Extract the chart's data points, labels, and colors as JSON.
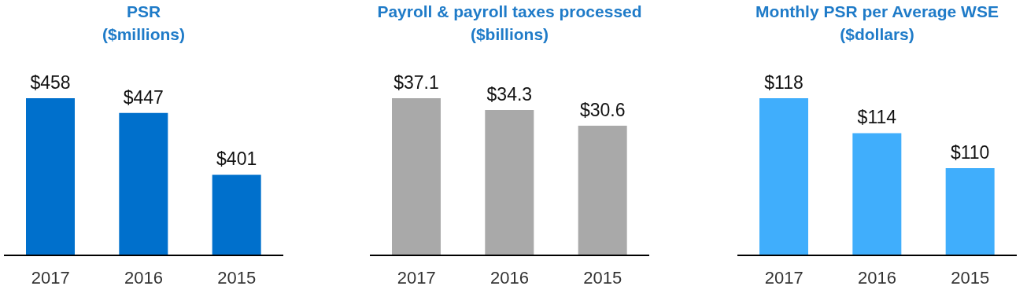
{
  "chart_data": [
    {
      "type": "bar",
      "title": "PSR",
      "subtitle": "($millions)",
      "categories": [
        "2017",
        "2016",
        "2015"
      ],
      "values": [
        458,
        447,
        401
      ],
      "value_labels": [
        "$458",
        "$447",
        "$401"
      ],
      "color": "#0070cc",
      "ylim": [
        341,
        458
      ]
    },
    {
      "type": "bar",
      "title": "Payroll & payroll taxes processed",
      "subtitle": "($billions)",
      "categories": [
        "2017",
        "2016",
        "2015"
      ],
      "values": [
        37.1,
        34.3,
        30.6
      ],
      "value_labels": [
        "$37.1",
        "$34.3",
        "$30.6"
      ],
      "color": "#a9a9a9",
      "ylim": [
        0,
        37.1
      ]
    },
    {
      "type": "bar",
      "title": "Monthly PSR per Average WSE",
      "subtitle": "($dollars)",
      "categories": [
        "2017",
        "2016",
        "2015"
      ],
      "values": [
        118,
        114,
        110
      ],
      "value_labels": [
        "$118",
        "$114",
        "$110"
      ],
      "color": "#40aefc",
      "ylim": [
        100,
        118
      ]
    }
  ]
}
